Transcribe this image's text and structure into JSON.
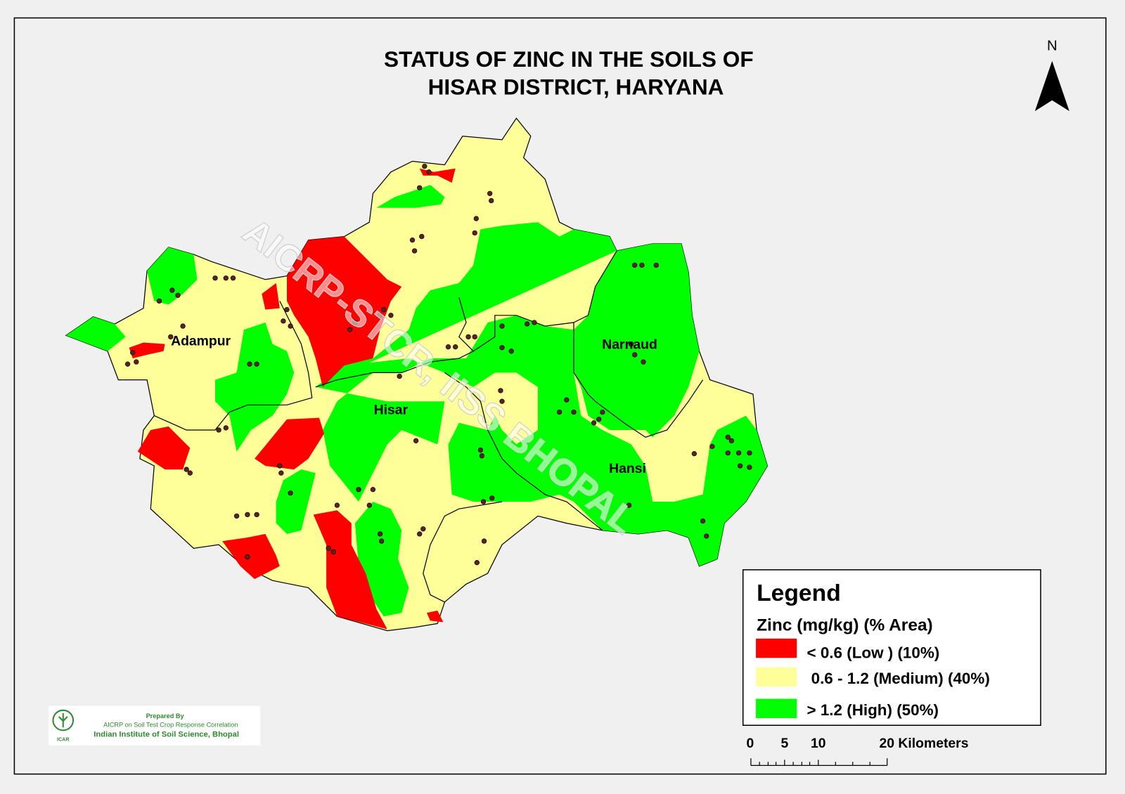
{
  "title": [
    "STATUS OF ZINC   IN THE SOILS OF",
    "HISAR  DISTRICT, HARYANA"
  ],
  "north": "N",
  "places": [
    "Adampur",
    "Hisar",
    "Narnaud",
    "Hansi"
  ],
  "watermark": "AICRP-STCR, IISS BHOPAL",
  "legend": {
    "heading": "Legend",
    "subtitle": "Zinc (mg/kg) (% Area)",
    "items": [
      {
        "label": "<  0.6 (Low ) (10%)",
        "color": "#ff0000"
      },
      {
        "label": "0.6 - 1.2  (Medium) (40%)",
        "color": "#ffff99"
      },
      {
        "label": "> 1.2  (High) (50%)",
        "color": "#00ff00"
      }
    ]
  },
  "scale_bar": [
    "0",
    "5",
    "10",
    "20 Kilometers"
  ],
  "credit": [
    "Prepared By",
    "AICRP on Soil Test Crop Response Correlation",
    "Indian Institute of Soil Science, Bhopal",
    "ICAR"
  ]
}
